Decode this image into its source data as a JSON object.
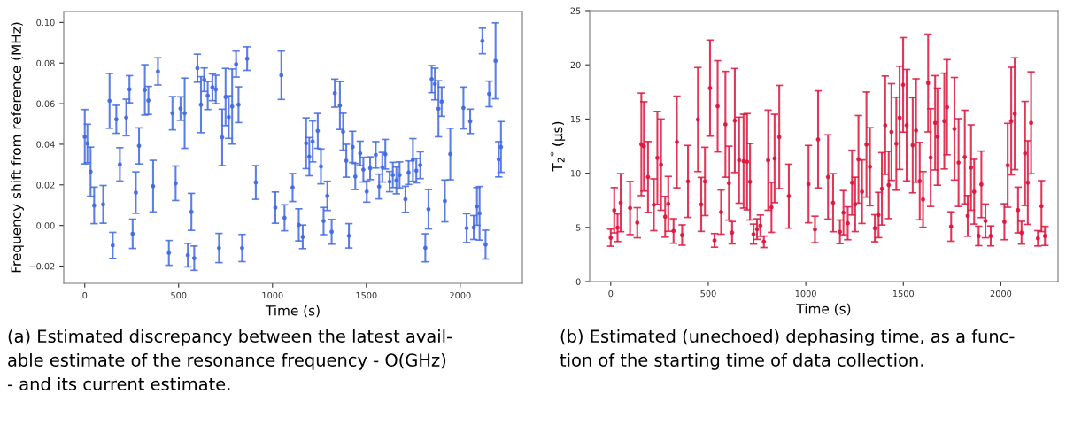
{
  "chart_data": [
    {
      "type": "scatter",
      "xlabel": "Time (s)",
      "ylabel": "Frequency shift from reference (MHz)",
      "marker": "circle",
      "grid": false,
      "legend": false,
      "xlim": [
        -112,
        2331
      ],
      "xticks": [
        0,
        500,
        1000,
        1500,
        2000
      ],
      "ylim": [
        -0.0285,
        0.1054
      ],
      "yticks": [
        {
          "value": -0.02,
          "label": "−0.02"
        },
        {
          "value": 0,
          "label": "0.00"
        },
        {
          "value": 0.02,
          "label": "0.02"
        },
        {
          "value": 0.04,
          "label": "0.04"
        },
        {
          "value": 0.06,
          "label": "0.06"
        },
        {
          "value": 0.08,
          "label": "0.08"
        },
        {
          "value": 0.1,
          "label": "0.10"
        }
      ],
      "series": [
        {
          "color": "#4169e1",
          "x": [
            0,
            14,
            31,
            50,
            98,
            132,
            149,
            168,
            187,
            221,
            238,
            255,
            272,
            289,
            320,
            339,
            364,
            390,
            448,
            467,
            484,
            510,
            532,
            549,
            568,
            583,
            600,
            619,
            636,
            655,
            680,
            698,
            715,
            732,
            750,
            767,
            785,
            806,
            819,
            838,
            865,
            911,
            1015,
            1047,
            1064,
            1107,
            1140,
            1161,
            1179,
            1196,
            1214,
            1241,
            1258,
            1272,
            1292,
            1315,
            1332,
            1359,
            1376,
            1393,
            1407,
            1427,
            1441,
            1467,
            1484,
            1502,
            1520,
            1550,
            1568,
            1585,
            1601,
            1624,
            1641,
            1660,
            1677,
            1708,
            1725,
            1748,
            1766,
            1787,
            1814,
            1831,
            1848,
            1865,
            1884,
            1901,
            1918,
            1947,
            2017,
            2034,
            2053,
            2072,
            2089,
            2103,
            2118,
            2135,
            2154,
            2188,
            2205,
            2217
          ],
          "values": [
            0.0437,
            0.0404,
            0.0265,
            0.0099,
            0.0104,
            0.0614,
            -0.0098,
            0.0523,
            0.0301,
            0.0532,
            0.0671,
            -0.0041,
            0.0162,
            0.0392,
            0.0668,
            0.0616,
            0.0194,
            0.0759,
            -0.0135,
            0.0553,
            0.0208,
            0.0576,
            0.0553,
            -0.0146,
            0.0067,
            -0.0161,
            0.0775,
            0.0595,
            0.0718,
            0.064,
            0.0681,
            0.067,
            -0.0111,
            0.0434,
            0.0633,
            0.0534,
            0.0586,
            0.0795,
            0.0595,
            -0.0111,
            0.0822,
            0.0212,
            0.0088,
            0.074,
            0.0038,
            0.0187,
            0.0003,
            -0.0056,
            0.0405,
            0.0339,
            0.0414,
            0.0466,
            0.0291,
            0.0022,
            0.0146,
            -0.0031,
            0.0652,
            0.0591,
            0.0462,
            0.0319,
            -0.0051,
            0.0387,
            0.0241,
            0.0355,
            0.0275,
            0.0167,
            0.0282,
            0.0348,
            0.0192,
            0.0287,
            0.0351,
            0.0216,
            0.0249,
            0.0222,
            0.0249,
            0.0129,
            0.026,
            0.0323,
            0.027,
            0.0297,
            -0.011,
            0.008,
            0.0721,
            0.0697,
            0.0575,
            0.061,
            0.0121,
            0.0352,
            0.0579,
            -0.0013,
            0.0513,
            -0.001,
            0.0094,
            0.006,
            0.0909,
            -0.0094,
            0.0648,
            0.0811,
            0.0326,
            0.0387
          ],
          "errors": [
            0.0134,
            0.0095,
            0.0121,
            0.009,
            0.0093,
            0.0135,
            0.0064,
            0.0069,
            0.0082,
            0.009,
            0.0067,
            0.0072,
            0.0102,
            0.0089,
            0.0124,
            0.0069,
            0.0127,
            0.0067,
            0.0061,
            0.0082,
            0.0085,
            0.0058,
            0.0173,
            0.0058,
            0.0091,
            0.006,
            0.0069,
            0.0138,
            0.0058,
            0.0069,
            0.0066,
            0.007,
            0.0072,
            0.0139,
            0.0141,
            0.0105,
            0.0185,
            0.0064,
            0.0088,
            0.0067,
            0.0058,
            0.0083,
            0.0077,
            0.0119,
            0.0064,
            0.0069,
            0.0079,
            0.0058,
            0.0125,
            0.0094,
            0.0101,
            0.0086,
            0.0086,
            0.0067,
            0.0072,
            0.0061,
            0.0069,
            0.0118,
            0.0091,
            0.0081,
            0.006,
            0.0077,
            0.0064,
            0.006,
            0.0061,
            0.0052,
            0.0056,
            0.0065,
            0.0061,
            0.0073,
            0.0073,
            0.005,
            0.0062,
            0.0066,
            0.0064,
            0.0064,
            0.0058,
            0.0105,
            0.006,
            0.0066,
            0.0069,
            0.0097,
            0.0067,
            0.0078,
            0.0138,
            0.0072,
            0.0103,
            0.0127,
            0.0103,
            0.0071,
            0.006,
            0.0059,
            0.0093,
            0.0132,
            0.0063,
            0.0071,
            0.0063,
            0.0187,
            0.0087,
            0.0125
          ]
        }
      ],
      "annotations": [
        "(a) Estimated discrepancy between the latest avail-\nable estimate of the resonance frequency - O(GHz)\n- and its current estimate."
      ]
    },
    {
      "type": "scatter",
      "xlabel": "Time (s)",
      "ylabel": "T$_{2}$$^{*}$ (μs)",
      "marker": "circle",
      "grid": false,
      "legend": false,
      "xlim": [
        -108,
        2293
      ],
      "xticks": [
        0,
        500,
        1000,
        1500,
        2000
      ],
      "ylim": [
        0,
        25
      ],
      "yticks": [
        0,
        5,
        10,
        15,
        20,
        25
      ],
      "series": [
        {
          "color": "#dc143c",
          "x": [
            0,
            18,
            35,
            51,
            99,
            136,
            157,
            170,
            191,
            221,
            239,
            258,
            279,
            295,
            322,
            339,
            366,
            396,
            447,
            464,
            483,
            509,
            532,
            548,
            566,
            588,
            606,
            622,
            636,
            658,
            681,
            699,
            714,
            732,
            750,
            767,
            785,
            807,
            824,
            840,
            864,
            913,
            1014,
            1047,
            1063,
            1114,
            1140,
            1175,
            1193,
            1215,
            1237,
            1253,
            1270,
            1288,
            1311,
            1329,
            1354,
            1373,
            1390,
            1407,
            1425,
            1439,
            1464,
            1481,
            1499,
            1517,
            1548,
            1565,
            1584,
            1601,
            1627,
            1640,
            1663,
            1675,
            1710,
            1724,
            1745,
            1762,
            1783,
            1815,
            1830,
            1847,
            1863,
            1886,
            1900,
            1921,
            1948,
            2018,
            2035,
            2053,
            2071,
            2088,
            2106,
            2124,
            2138,
            2155,
            2190,
            2208,
            2226
          ],
          "values": [
            4.05,
            6.58,
            4.97,
            7.28,
            6.79,
            5.43,
            12.66,
            12.47,
            9.65,
            7.09,
            11.41,
            10.79,
            5.98,
            7.17,
            4.67,
            12.88,
            4.29,
            9.24,
            14.95,
            7.12,
            9.24,
            17.85,
            3.8,
            16.17,
            6.41,
            14.51,
            9.08,
            4.51,
            14.86,
            11.2,
            11.11,
            11.06,
            9.21,
            4.38,
            4.84,
            5.16,
            3.67,
            11.2,
            6.85,
            11.36,
            13.34,
            7.88,
            8.99,
            4.81,
            13.12,
            9.65,
            7.28,
            4.59,
            6.36,
            5.38,
            9.13,
            7.12,
            11.28,
            8.29,
            12.64,
            10.6,
            4.92,
            6.14,
            8.56,
            14.43,
            8.91,
            13.8,
            12.72,
            15.11,
            18.15,
            14.43,
            12.58,
            13.94,
            9.27,
            7.58,
            18.32,
            11.44,
            14.65,
            13.37,
            14.81,
            16.09,
            5.08,
            14.1,
            10.98,
            11.49,
            6.06,
            10.52,
            8.29,
            4.21,
            8.97,
            5.6,
            4.21,
            5.52,
            10.73,
            14.81,
            15.49,
            6.6,
            4.51,
            11.82,
            9.13,
            14.65,
            3.99,
            6.96,
            4.21
          ],
          "errors": [
            0.79,
            2.09,
            1.28,
            2.68,
            2.45,
            1.39,
            4.73,
            4.12,
            3.27,
            2.39,
            4.29,
            4.21,
            1.88,
            2.53,
            1.13,
            4.23,
            0.94,
            3.32,
            4.8,
            2.49,
            3.15,
            4.43,
            0.63,
            4.21,
            2.04,
            4.88,
            3.41,
            1.03,
            4.8,
            3.97,
            4.33,
            4.44,
            3.53,
            0.92,
            0.95,
            0.98,
            0.53,
            4.62,
            2.31,
            4.08,
            4.76,
            2.95,
            3.57,
            1.22,
            4.48,
            3.89,
            2.68,
            1.09,
            2.04,
            1.52,
            2.99,
            2.51,
            4.04,
            2.93,
            4.85,
            3.6,
            1.25,
            2.09,
            3.34,
            4.54,
            3.1,
            4.46,
            4.29,
            4.76,
            4.36,
            5.14,
            4.39,
            4.77,
            3.57,
            2.57,
            4.51,
            4.51,
            4.35,
            4.48,
            4.42,
            4.39,
            1.36,
            4.73,
            4.05,
            4.32,
            1.88,
            3.94,
            2.99,
            0.9,
            3.07,
            1.56,
            0.92,
            1.66,
            3.87,
            4.96,
            5.16,
            2.11,
            1.05,
            4.8,
            3.86,
            4.7,
            0.71,
            2.35,
            0.88
          ]
        }
      ],
      "annotations": [
        "(b) Estimated (unechoed) dephasing time, as a func-\ntion of the starting time of data collection."
      ]
    }
  ]
}
